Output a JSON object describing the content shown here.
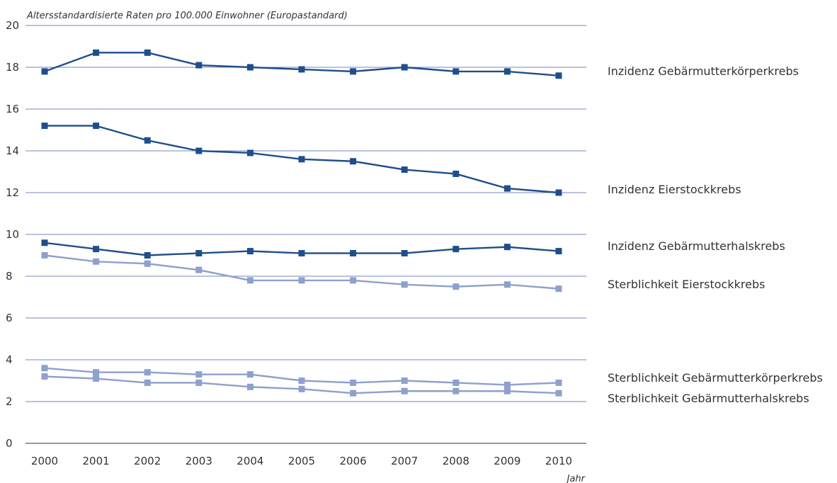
{
  "chart_data": {
    "type": "line",
    "ylabel": "Altersstandardisierte Raten pro 100.000 Einwohner (Europastandard)",
    "xlabel": "Jahr",
    "x": [
      2000,
      2001,
      2002,
      2003,
      2004,
      2005,
      2006,
      2007,
      2008,
      2009,
      2010
    ],
    "ylim": [
      0,
      20
    ],
    "yticks": [
      0,
      2,
      4,
      6,
      8,
      10,
      12,
      14,
      16,
      18,
      20
    ],
    "grid": true,
    "legend": "right-inline",
    "colors": {
      "dark": "#1f4e8c",
      "light": "#8ea0cc",
      "grid": "#4a5ea8"
    },
    "series": [
      {
        "name": "Inzidenz Gebärmutterkörperkrebs",
        "style": "dark",
        "values": [
          17.8,
          18.7,
          18.7,
          18.1,
          18.0,
          17.9,
          17.8,
          18.0,
          17.8,
          17.8,
          17.6
        ]
      },
      {
        "name": "Inzidenz Eierstockkrebs",
        "style": "dark",
        "values": [
          15.2,
          15.2,
          14.5,
          14.0,
          13.9,
          13.6,
          13.5,
          13.1,
          12.9,
          12.2,
          12.0
        ]
      },
      {
        "name": "Inzidenz Gebärmutterhalskrebs",
        "style": "dark",
        "values": [
          9.6,
          9.3,
          9.0,
          9.1,
          9.2,
          9.1,
          9.1,
          9.1,
          9.3,
          9.4,
          9.2
        ]
      },
      {
        "name": "Sterblichkeit Eierstockkrebs",
        "style": "light",
        "values": [
          9.0,
          8.7,
          8.6,
          8.3,
          7.8,
          7.8,
          7.8,
          7.6,
          7.5,
          7.6,
          7.4
        ]
      },
      {
        "name": "Sterblichkeit Gebärmutterkörperkrebs",
        "style": "light",
        "values": [
          3.6,
          3.4,
          3.4,
          3.3,
          3.3,
          3.0,
          2.9,
          3.0,
          2.9,
          2.8,
          2.9
        ]
      },
      {
        "name": "Sterblichkeit Gebärmutterhalskrebs",
        "style": "light",
        "values": [
          3.2,
          3.1,
          2.9,
          2.9,
          2.7,
          2.6,
          2.4,
          2.5,
          2.5,
          2.5,
          2.4
        ]
      }
    ]
  }
}
